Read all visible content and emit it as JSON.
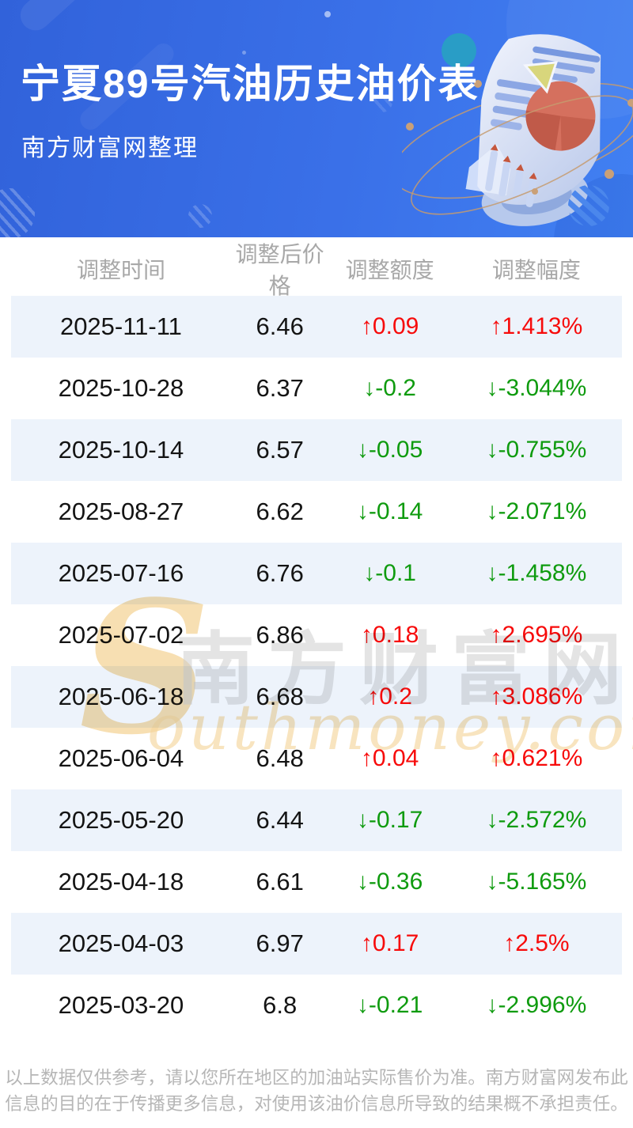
{
  "banner": {
    "title": "宁夏89号汽油历史油价表",
    "subtitle": "南方财富网整理"
  },
  "table": {
    "headers": [
      "调整时间",
      "调整后价格",
      "调整额度",
      "调整幅度"
    ],
    "rows": [
      {
        "date": "2025-11-11",
        "price": "6.46",
        "change": "↑0.09",
        "pct": "↑1.413%",
        "dir": "up"
      },
      {
        "date": "2025-10-28",
        "price": "6.37",
        "change": "↓-0.2",
        "pct": "↓-3.044%",
        "dir": "down"
      },
      {
        "date": "2025-10-14",
        "price": "6.57",
        "change": "↓-0.05",
        "pct": "↓-0.755%",
        "dir": "down"
      },
      {
        "date": "2025-08-27",
        "price": "6.62",
        "change": "↓-0.14",
        "pct": "↓-2.071%",
        "dir": "down"
      },
      {
        "date": "2025-07-16",
        "price": "6.76",
        "change": "↓-0.1",
        "pct": "↓-1.458%",
        "dir": "down"
      },
      {
        "date": "2025-07-02",
        "price": "6.86",
        "change": "↑0.18",
        "pct": "↑2.695%",
        "dir": "up"
      },
      {
        "date": "2025-06-18",
        "price": "6.68",
        "change": "↑0.2",
        "pct": "↑3.086%",
        "dir": "up"
      },
      {
        "date": "2025-06-04",
        "price": "6.48",
        "change": "↑0.04",
        "pct": "↑0.621%",
        "dir": "up"
      },
      {
        "date": "2025-05-20",
        "price": "6.44",
        "change": "↓-0.17",
        "pct": "↓-2.572%",
        "dir": "down"
      },
      {
        "date": "2025-04-18",
        "price": "6.61",
        "change": "↓-0.36",
        "pct": "↓-5.165%",
        "dir": "down"
      },
      {
        "date": "2025-04-03",
        "price": "6.97",
        "change": "↑0.17",
        "pct": "↑2.5%",
        "dir": "up"
      },
      {
        "date": "2025-03-20",
        "price": "6.8",
        "change": "↓-0.21",
        "pct": "↓-2.996%",
        "dir": "down"
      }
    ]
  },
  "watermark": {
    "initial": "S",
    "cn": "南方财富网",
    "en": "outhmoney.com"
  },
  "footer": {
    "disclaimer": "以上数据仅供参考，请以您所在地区的加油站实际售价为准。南方财富网发布此信息的目的在于传播更多信息，对使用该油价信息所导致的结果概不承担责任。"
  },
  "colors": {
    "up_red": "#f70b0b",
    "down_green": "#0f9b0f",
    "banner_blue": "#3a70e8",
    "row_alt": "#edf3fb",
    "header_gray": "#a8a8a8",
    "footer_gray": "#b6b6b6"
  }
}
